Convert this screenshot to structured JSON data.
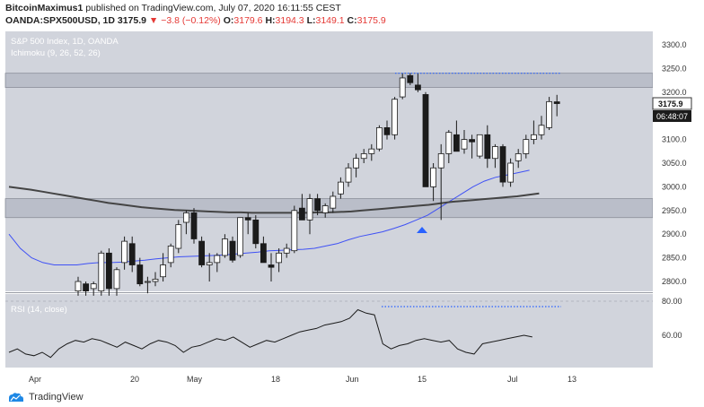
{
  "header": {
    "author": "BitcoinMaximus1",
    "published_text": " published on TradingView.com, July 07, 2020 16:11:55 CEST",
    "symbol": "OANDA:SPX500USD, 1D",
    "last_price": "3175.9",
    "change": "−3.8 (−0.12%)",
    "o_label": "O:",
    "o_value": "3179.6",
    "h_label": "H:",
    "h_value": "3194.3",
    "l_label": "L:",
    "l_value": "3149.1",
    "c_label": "C:",
    "c_value": "3175.9"
  },
  "legend": {
    "title": "S&P 500 Index, 1D, OANDA",
    "indicator": "Ichimoku (9, 26, 52, 26)",
    "rsi": "RSI (14, close)"
  },
  "price_axis": {
    "ticks": [
      "3300.0",
      "3250.0",
      "3200.0",
      "3150.0",
      "3100.0",
      "3050.0",
      "3000.0",
      "2950.0",
      "2900.0",
      "2850.0",
      "2800.0"
    ],
    "current_price": "3175.9",
    "countdown": "06:48:07"
  },
  "rsi_axis": {
    "ticks": [
      "80.00",
      "60.00"
    ]
  },
  "time_axis": {
    "ticks": [
      "Apr",
      "20",
      "May",
      "18",
      "Jun",
      "15",
      "Jul",
      "13"
    ]
  },
  "footer": {
    "brand": "TradingView"
  },
  "colors": {
    "background": "#d1d4dc",
    "zone": "#babec9",
    "bullish": "#ffffff",
    "bearish": "#1b1b1b",
    "blue_line": "#3f51f5",
    "dark_line": "#444444",
    "dotted": "#2962ff",
    "arrow": "#2962ff"
  },
  "chart_data": {
    "type": "candlestick",
    "title": "S&P 500 Index, 1D, OANDA",
    "ylim": [
      2770,
      3335
    ],
    "horizontal_zones": [
      [
        3210,
        3240
      ],
      [
        2935,
        2975
      ]
    ],
    "candles": [
      {
        "o": 2780,
        "h": 2810,
        "l": 2770,
        "c": 2800
      },
      {
        "o": 2795,
        "h": 2800,
        "l": 2770,
        "c": 2780
      },
      {
        "o": 2785,
        "h": 2800,
        "l": 2770,
        "c": 2795
      },
      {
        "o": 2780,
        "h": 2865,
        "l": 2770,
        "c": 2860
      },
      {
        "o": 2860,
        "h": 2870,
        "l": 2770,
        "c": 2785
      },
      {
        "o": 2785,
        "h": 2830,
        "l": 2770,
        "c": 2825
      },
      {
        "o": 2840,
        "h": 2895,
        "l": 2825,
        "c": 2885
      },
      {
        "o": 2880,
        "h": 2895,
        "l": 2820,
        "c": 2835
      },
      {
        "o": 2835,
        "h": 2850,
        "l": 2790,
        "c": 2795
      },
      {
        "o": 2800,
        "h": 2810,
        "l": 2775,
        "c": 2800
      },
      {
        "o": 2800,
        "h": 2820,
        "l": 2790,
        "c": 2805
      },
      {
        "o": 2810,
        "h": 2860,
        "l": 2800,
        "c": 2835
      },
      {
        "o": 2840,
        "h": 2880,
        "l": 2830,
        "c": 2875
      },
      {
        "o": 2870,
        "h": 2930,
        "l": 2860,
        "c": 2920
      },
      {
        "o": 2925,
        "h": 2950,
        "l": 2900,
        "c": 2945
      },
      {
        "o": 2945,
        "h": 2955,
        "l": 2880,
        "c": 2890
      },
      {
        "o": 2885,
        "h": 2895,
        "l": 2830,
        "c": 2835
      },
      {
        "o": 2835,
        "h": 2860,
        "l": 2800,
        "c": 2840
      },
      {
        "o": 2840,
        "h": 2860,
        "l": 2820,
        "c": 2855
      },
      {
        "o": 2855,
        "h": 2900,
        "l": 2850,
        "c": 2890
      },
      {
        "o": 2885,
        "h": 2895,
        "l": 2840,
        "c": 2845
      },
      {
        "o": 2855,
        "h": 2935,
        "l": 2850,
        "c": 2935
      },
      {
        "o": 2935,
        "h": 2945,
        "l": 2900,
        "c": 2930
      },
      {
        "o": 2930,
        "h": 2940,
        "l": 2870,
        "c": 2880
      },
      {
        "o": 2880,
        "h": 2895,
        "l": 2840,
        "c": 2840
      },
      {
        "o": 2835,
        "h": 2860,
        "l": 2800,
        "c": 2830
      },
      {
        "o": 2840,
        "h": 2870,
        "l": 2820,
        "c": 2860
      },
      {
        "o": 2860,
        "h": 2880,
        "l": 2850,
        "c": 2870
      },
      {
        "o": 2865,
        "h": 2960,
        "l": 2860,
        "c": 2950
      },
      {
        "o": 2955,
        "h": 2985,
        "l": 2935,
        "c": 2930
      },
      {
        "o": 2930,
        "h": 2985,
        "l": 2900,
        "c": 2975
      },
      {
        "o": 2975,
        "h": 2985,
        "l": 2940,
        "c": 2950
      },
      {
        "o": 2945,
        "h": 2965,
        "l": 2935,
        "c": 2960
      },
      {
        "o": 2955,
        "h": 2990,
        "l": 2945,
        "c": 2980
      },
      {
        "o": 2985,
        "h": 3020,
        "l": 2975,
        "c": 3010
      },
      {
        "o": 3010,
        "h": 3050,
        "l": 3000,
        "c": 3040
      },
      {
        "o": 3040,
        "h": 3070,
        "l": 3020,
        "c": 3060
      },
      {
        "o": 3060,
        "h": 3080,
        "l": 3050,
        "c": 3070
      },
      {
        "o": 3070,
        "h": 3090,
        "l": 3055,
        "c": 3080
      },
      {
        "o": 3080,
        "h": 3130,
        "l": 3075,
        "c": 3125
      },
      {
        "o": 3125,
        "h": 3140,
        "l": 3100,
        "c": 3110
      },
      {
        "o": 3110,
        "h": 3190,
        "l": 3100,
        "c": 3185
      },
      {
        "o": 3190,
        "h": 3240,
        "l": 3185,
        "c": 3230
      },
      {
        "o": 3235,
        "h": 3240,
        "l": 3215,
        "c": 3220
      },
      {
        "o": 3215,
        "h": 3240,
        "l": 3200,
        "c": 3205
      },
      {
        "o": 3195,
        "h": 3200,
        "l": 3000,
        "c": 3000
      },
      {
        "o": 3000,
        "h": 3050,
        "l": 2970,
        "c": 3040
      },
      {
        "o": 3040,
        "h": 3090,
        "l": 2930,
        "c": 3070
      },
      {
        "o": 3070,
        "h": 3120,
        "l": 3050,
        "c": 3115
      },
      {
        "o": 3110,
        "h": 3140,
        "l": 3080,
        "c": 3075
      },
      {
        "o": 3080,
        "h": 3120,
        "l": 3070,
        "c": 3100
      },
      {
        "o": 3100,
        "h": 3110,
        "l": 3060,
        "c": 3095
      },
      {
        "o": 3065,
        "h": 3110,
        "l": 3060,
        "c": 3110
      },
      {
        "o": 3110,
        "h": 3130,
        "l": 3040,
        "c": 3060
      },
      {
        "o": 3060,
        "h": 3090,
        "l": 3040,
        "c": 3085
      },
      {
        "o": 3085,
        "h": 3090,
        "l": 3000,
        "c": 3010
      },
      {
        "o": 3010,
        "h": 3060,
        "l": 3000,
        "c": 3050
      },
      {
        "o": 3055,
        "h": 3080,
        "l": 3040,
        "c": 3070
      },
      {
        "o": 3070,
        "h": 3110,
        "l": 3060,
        "c": 3100
      },
      {
        "o": 3100,
        "h": 3140,
        "l": 3090,
        "c": 3110
      },
      {
        "o": 3110,
        "h": 3150,
        "l": 3100,
        "c": 3130
      },
      {
        "o": 3125,
        "h": 3190,
        "l": 3120,
        "c": 3180
      },
      {
        "o": 3179.6,
        "h": 3194.3,
        "l": 3149.1,
        "c": 3175.9
      }
    ],
    "series": [
      {
        "values": [
          2900,
          2870,
          2850,
          2840,
          2835,
          2835,
          2835,
          2838,
          2840,
          2840,
          2841,
          2843,
          2845,
          2848,
          2850,
          2852,
          2853,
          2854,
          2855,
          2856,
          2858,
          2860,
          2862,
          2865,
          2866,
          2867,
          2868,
          2870,
          2875,
          2880,
          2888,
          2895,
          2900,
          2905,
          2912,
          2920,
          2930,
          2940,
          2955,
          2970,
          2985,
          3000,
          3012,
          3020,
          3025,
          3030,
          3035
        ]
      },
      {
        "values": [
          3000,
          2997,
          2994,
          2990,
          2986,
          2982,
          2978,
          2974,
          2970,
          2966,
          2963,
          2960,
          2957,
          2955,
          2953,
          2951,
          2950,
          2949,
          2948,
          2947,
          2946,
          2946,
          2945,
          2945,
          2945,
          2945,
          2945,
          2945,
          2946,
          2946,
          2947,
          2948,
          2950,
          2952,
          2954,
          2956,
          2958,
          2960,
          2962,
          2965,
          2968,
          2970,
          2972,
          2974,
          2976,
          2978,
          2980,
          2983,
          2986
        ]
      }
    ],
    "rsi": {
      "label": "RSI (14, close)",
      "ylim": [
        45,
        85
      ],
      "ticks": [
        80,
        60
      ],
      "values": [
        50,
        52,
        49,
        48,
        50,
        47,
        52,
        55,
        57,
        56,
        58,
        57,
        55,
        53,
        56,
        54,
        52,
        55,
        57,
        56,
        54,
        50,
        53,
        54,
        56,
        58,
        57,
        59,
        56,
        53,
        55,
        57,
        56,
        58,
        60,
        62,
        63,
        64,
        66,
        67,
        68,
        70,
        75,
        73,
        72,
        55,
        52,
        54,
        55,
        57,
        58,
        57,
        56,
        57,
        52,
        50,
        49,
        55,
        56,
        57,
        58,
        59,
        60,
        59
      ]
    }
  }
}
